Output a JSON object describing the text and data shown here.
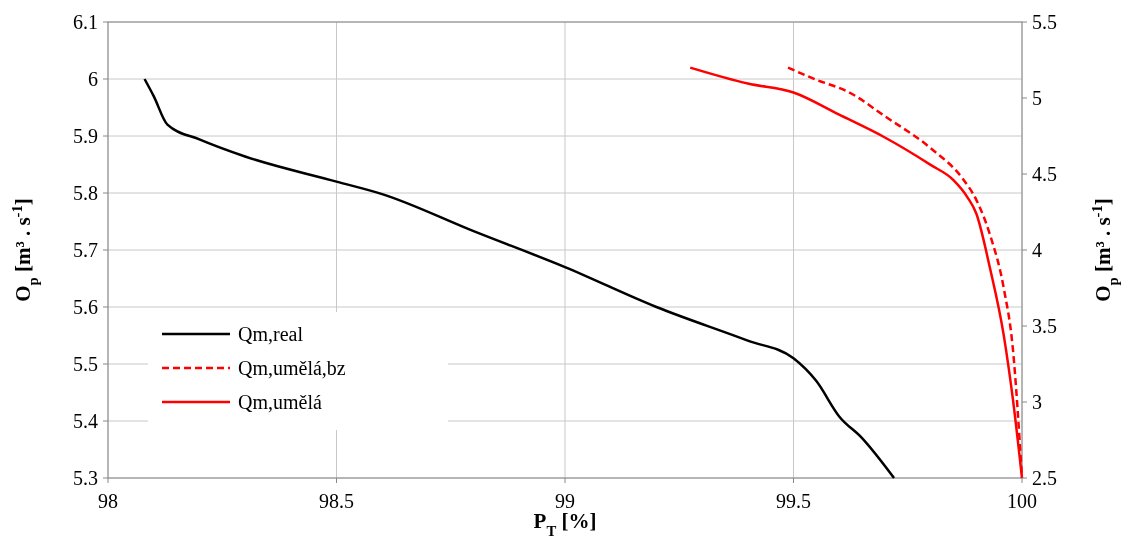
{
  "chart_data": {
    "type": "line",
    "xlabel": "P$_{T}$ [%]",
    "ylabel": "O$_{p}$ [m³ . s$^{-1}$]",
    "y2label": "O$_{p}$ [m³ . s$^{-1}$]",
    "xlim": [
      98,
      100
    ],
    "xticks": [
      98,
      98.5,
      99,
      99.5,
      100
    ],
    "ylim": [
      5.3,
      6.1
    ],
    "yticks": [
      5.3,
      5.4,
      5.5,
      5.6,
      5.7,
      5.8,
      5.9,
      6,
      6.1
    ],
    "y2lim": [
      2.5,
      5.5
    ],
    "y2ticks": [
      2.5,
      3,
      3.5,
      4,
      4.5,
      5,
      5.5
    ],
    "grid": true,
    "legend": "bottom left",
    "marker": "none",
    "series": [
      {
        "name": "Qm,real",
        "color": "#000000",
        "line_style": "solid",
        "x": [
          98.08,
          98.1,
          98.13,
          98.2,
          98.3,
          98.5,
          98.6,
          98.8,
          99,
          99.2,
          99.4,
          99.5,
          99.55,
          99.6,
          99.65,
          99.72
        ],
        "values": [
          6.0,
          5.97,
          5.92,
          5.894,
          5.864,
          5.82,
          5.798,
          5.733,
          5.67,
          5.6,
          5.541,
          5.51,
          5.47,
          5.408,
          5.37,
          5.3
        ]
      },
      {
        "name": "Qm,umělá,bz",
        "color": "#ff0000",
        "line_style": "dashed",
        "axis": "y2",
        "x": [
          99.488,
          99.55,
          99.62,
          99.7,
          99.8,
          99.87,
          99.9,
          99.93,
          99.96,
          99.98,
          100
        ],
        "values": [
          5.2,
          5.12,
          5.04,
          4.88,
          4.67,
          4.47,
          4.33,
          4.1,
          3.75,
          3.35,
          2.5
        ]
      },
      {
        "name": "Qm,umělá",
        "color": "#ff0000",
        "line_style": "solid",
        "axis": "y2",
        "x": [
          99.274,
          99.4,
          99.5,
          99.6,
          99.7,
          99.8,
          99.85,
          99.88,
          99.9,
          99.93,
          99.96,
          99.98,
          100
        ],
        "values": [
          5.2,
          5.095,
          5.036,
          4.89,
          4.74,
          4.56,
          4.46,
          4.35,
          4.24,
          3.88,
          3.44,
          3.02,
          2.5
        ]
      }
    ]
  }
}
